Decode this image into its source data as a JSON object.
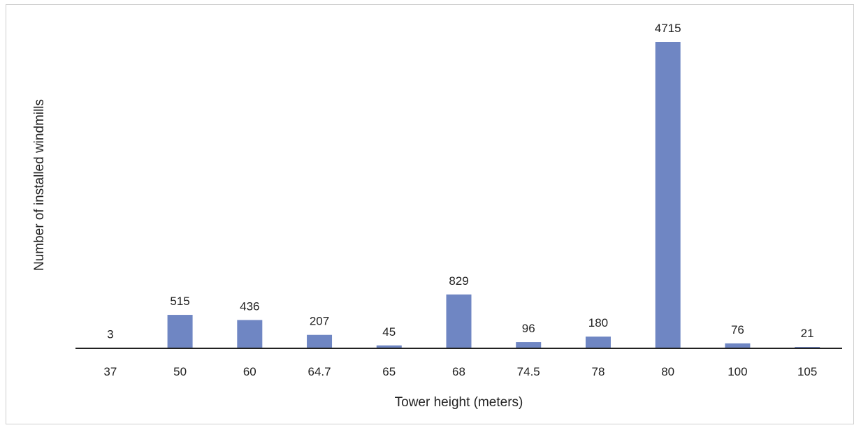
{
  "chart_data": {
    "type": "bar",
    "title": "",
    "xlabel": "Tower height (meters)",
    "ylabel": "Number of installed windmills",
    "categories": [
      "37",
      "50",
      "60",
      "64.7",
      "65",
      "68",
      "74.5",
      "78",
      "80",
      "100",
      "105"
    ],
    "values": [
      3,
      515,
      436,
      207,
      45,
      829,
      96,
      180,
      4715,
      76,
      21
    ],
    "data_labels": [
      "3",
      "515",
      "436",
      "207",
      "45",
      "829",
      "96",
      "180",
      "4715",
      "76",
      "21"
    ],
    "ylim": [
      0,
      4715
    ],
    "grid": false,
    "legend": "none",
    "bar_color": "#6f86c3",
    "axis_color": "#222222"
  }
}
